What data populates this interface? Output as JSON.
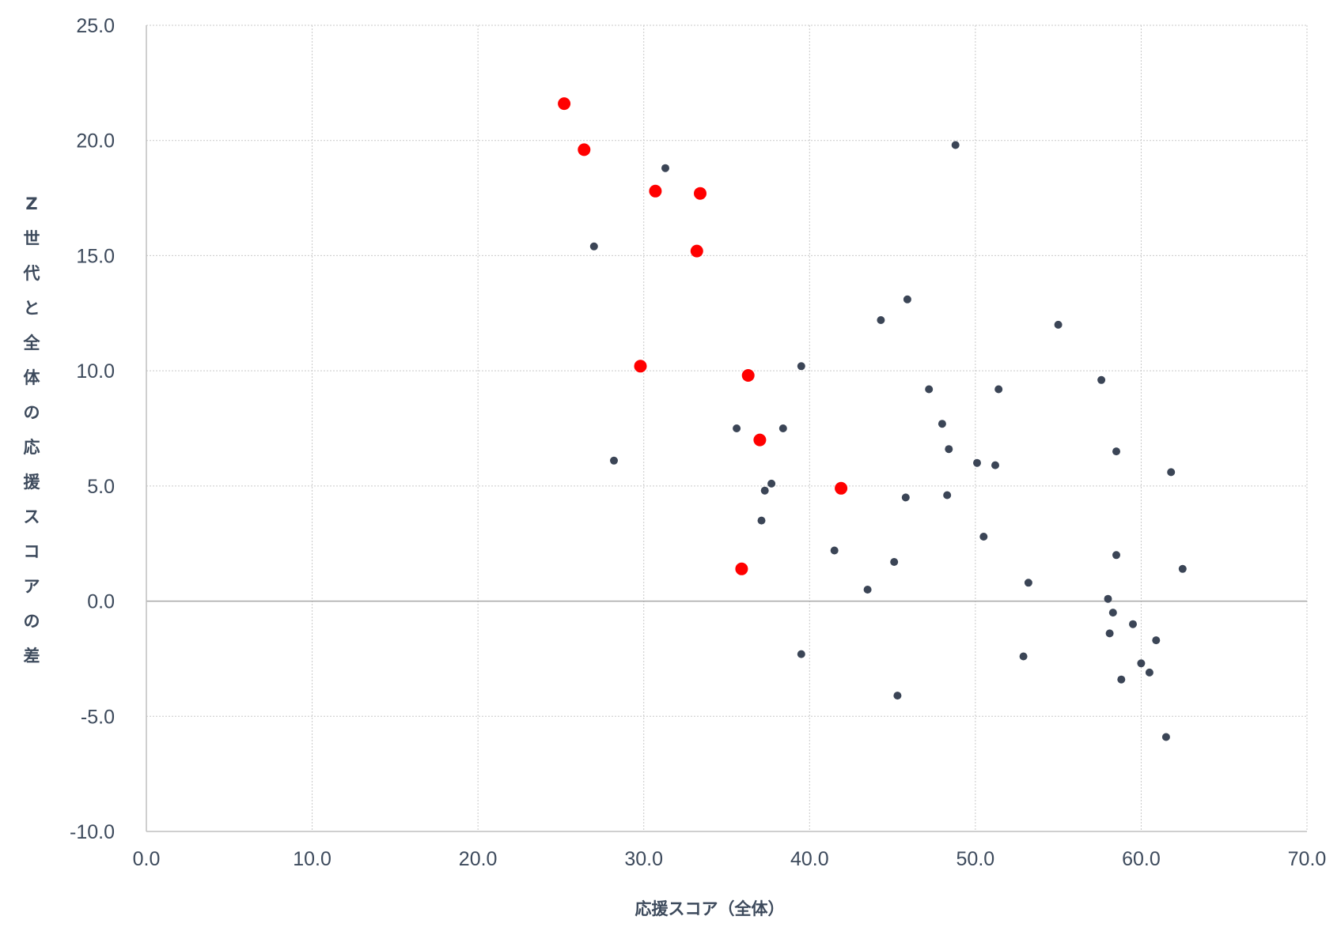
{
  "chart_data": {
    "type": "scatter",
    "title": "",
    "xlabel": "応援スコア（全体）",
    "ylabel": "Z世代と全体の応援スコアの差",
    "xlim": [
      0,
      70
    ],
    "ylim": [
      -10,
      25
    ],
    "x_ticks": [
      "0.0",
      "10.0",
      "20.0",
      "30.0",
      "40.0",
      "50.0",
      "60.0",
      "70.0"
    ],
    "y_ticks": [
      "-10.0",
      "-5.0",
      "0.0",
      "5.0",
      "10.0",
      "15.0",
      "20.0",
      "25.0"
    ],
    "grid": true,
    "legend": "none",
    "series": [
      {
        "color": "#3b4556",
        "points": [
          [
            31.3,
            18.8
          ],
          [
            27.0,
            15.4
          ],
          [
            28.2,
            6.1
          ],
          [
            48.8,
            19.8
          ],
          [
            45.9,
            13.1
          ],
          [
            44.3,
            12.2
          ],
          [
            55.0,
            12.0
          ],
          [
            39.5,
            10.2
          ],
          [
            47.2,
            9.2
          ],
          [
            51.4,
            9.2
          ],
          [
            57.6,
            9.6
          ],
          [
            48.0,
            7.7
          ],
          [
            35.6,
            7.5
          ],
          [
            38.4,
            7.5
          ],
          [
            48.4,
            6.6
          ],
          [
            58.5,
            6.5
          ],
          [
            50.1,
            6.0
          ],
          [
            51.2,
            5.9
          ],
          [
            61.8,
            5.6
          ],
          [
            37.7,
            5.1
          ],
          [
            37.3,
            4.8
          ],
          [
            45.8,
            4.5
          ],
          [
            48.3,
            4.6
          ],
          [
            37.1,
            3.5
          ],
          [
            50.5,
            2.8
          ],
          [
            41.5,
            2.2
          ],
          [
            45.1,
            1.7
          ],
          [
            58.5,
            2.0
          ],
          [
            62.5,
            1.4
          ],
          [
            53.2,
            0.8
          ],
          [
            43.5,
            0.5
          ],
          [
            58.0,
            0.1
          ],
          [
            58.3,
            -0.5
          ],
          [
            59.5,
            -1.0
          ],
          [
            58.1,
            -1.4
          ],
          [
            60.9,
            -1.7
          ],
          [
            39.5,
            -2.3
          ],
          [
            52.9,
            -2.4
          ],
          [
            60.0,
            -2.7
          ],
          [
            60.5,
            -3.1
          ],
          [
            58.8,
            -3.4
          ],
          [
            45.3,
            -4.1
          ],
          [
            61.5,
            -5.9
          ]
        ]
      },
      {
        "color": "#ff0000",
        "points": [
          [
            25.2,
            21.6
          ],
          [
            26.4,
            19.6
          ],
          [
            30.7,
            17.8
          ],
          [
            33.4,
            17.7
          ],
          [
            33.2,
            15.2
          ],
          [
            29.8,
            10.2
          ],
          [
            36.3,
            9.8
          ],
          [
            37.0,
            7.0
          ],
          [
            41.9,
            4.9
          ],
          [
            35.9,
            1.4
          ]
        ]
      }
    ]
  }
}
